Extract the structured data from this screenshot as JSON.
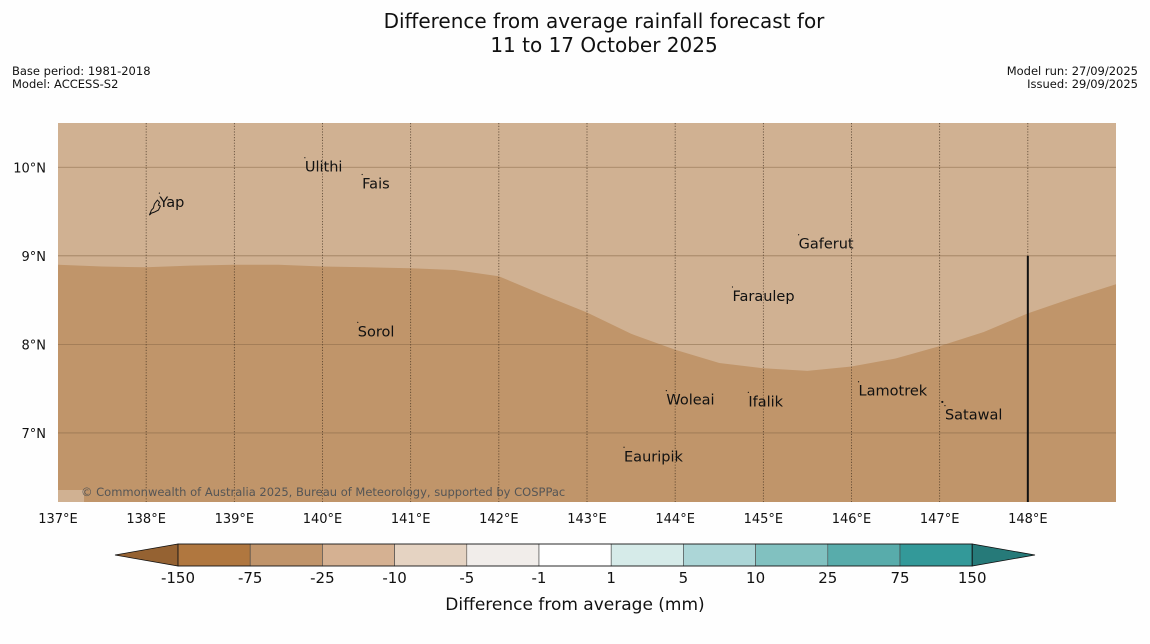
{
  "title": {
    "line1": "Difference from average rainfall forecast for",
    "line2": "11 to 17 October 2025"
  },
  "meta": {
    "base_period": "Base period: 1981-2018",
    "model": "Model: ACCESS-S2",
    "model_run": "Model run: 27/09/2025",
    "issued": "Issued: 29/09/2025"
  },
  "map": {
    "lon_range": [
      137.0,
      149.0
    ],
    "lat_range": [
      6.22,
      10.5
    ],
    "lon_ticks": [
      137,
      138,
      139,
      140,
      141,
      142,
      143,
      144,
      145,
      146,
      147,
      148
    ],
    "lon_tick_labels": [
      "137°E",
      "138°E",
      "139°E",
      "140°E",
      "141°E",
      "142°E",
      "143°E",
      "144°E",
      "145°E",
      "146°E",
      "147°E",
      "148°E"
    ],
    "lat_ticks": [
      10,
      9,
      8,
      7
    ],
    "lat_tick_labels": [
      "10°N",
      "9°N",
      "8°N",
      "7°N"
    ],
    "copyright": "© Commonwealth of Australia 2025, Bureau of Meteorology, supported by COSPPac",
    "regions": [
      {
        "category": "-25 to -10",
        "color": "#d0b192",
        "area": "northern part of map"
      },
      {
        "category": "-75 to -25",
        "color": "#c0956a",
        "area": "southern part of map",
        "boundary_lat_by_lon": [
          [
            137.0,
            8.9
          ],
          [
            137.5,
            8.88
          ],
          [
            138.0,
            8.87
          ],
          [
            138.5,
            8.89
          ],
          [
            139.0,
            8.9
          ],
          [
            139.5,
            8.9
          ],
          [
            140.0,
            8.88
          ],
          [
            140.5,
            8.87
          ],
          [
            141.0,
            8.86
          ],
          [
            141.5,
            8.84
          ],
          [
            142.0,
            8.77
          ],
          [
            142.5,
            8.56
          ],
          [
            143.0,
            8.36
          ],
          [
            143.5,
            8.12
          ],
          [
            144.0,
            7.94
          ],
          [
            144.5,
            7.79
          ],
          [
            145.0,
            7.73
          ],
          [
            145.5,
            7.7
          ],
          [
            146.0,
            7.75
          ],
          [
            146.5,
            7.84
          ],
          [
            147.0,
            7.98
          ],
          [
            147.5,
            8.14
          ],
          [
            148.0,
            8.35
          ],
          [
            148.5,
            8.52
          ],
          [
            149.0,
            8.68
          ]
        ]
      }
    ],
    "places": [
      {
        "name": "Ulithi",
        "lon": 139.8,
        "lat": 9.95
      },
      {
        "name": "Fais",
        "lon": 140.45,
        "lat": 9.76
      },
      {
        "name": "Yap",
        "lon": 138.15,
        "lat": 9.55
      },
      {
        "name": "Gaferut",
        "lon": 145.4,
        "lat": 9.08
      },
      {
        "name": "Faraulep",
        "lon": 144.65,
        "lat": 8.49
      },
      {
        "name": "Sorol",
        "lon": 140.4,
        "lat": 8.09
      },
      {
        "name": "Lamotrek",
        "lon": 146.08,
        "lat": 7.42
      },
      {
        "name": "Satawal",
        "lon": 147.06,
        "lat": 7.15
      },
      {
        "name": "Woleai",
        "lon": 143.9,
        "lat": 7.32
      },
      {
        "name": "Ifalik",
        "lon": 144.83,
        "lat": 7.3
      },
      {
        "name": "Eauripik",
        "lon": 143.42,
        "lat": 6.68
      }
    ],
    "vertical_marker_lon": 148.0,
    "vertical_marker_lat_top": 9.0
  },
  "legend": {
    "title": "Difference from average (mm)",
    "tick_labels": [
      "-150",
      "-75",
      "-25",
      "-10",
      "-5",
      "-1",
      "1",
      "5",
      "10",
      "25",
      "75",
      "150"
    ],
    "low_extend_color": "#956232",
    "high_extend_color": "#267a79",
    "colors": [
      "#b0773f",
      "#c0946a",
      "#d5b192",
      "#e5d3c2",
      "#f1edea",
      "#ffffff",
      "#d6ebe9",
      "#acd6d7",
      "#81c1c0",
      "#58acab",
      "#339999"
    ]
  }
}
